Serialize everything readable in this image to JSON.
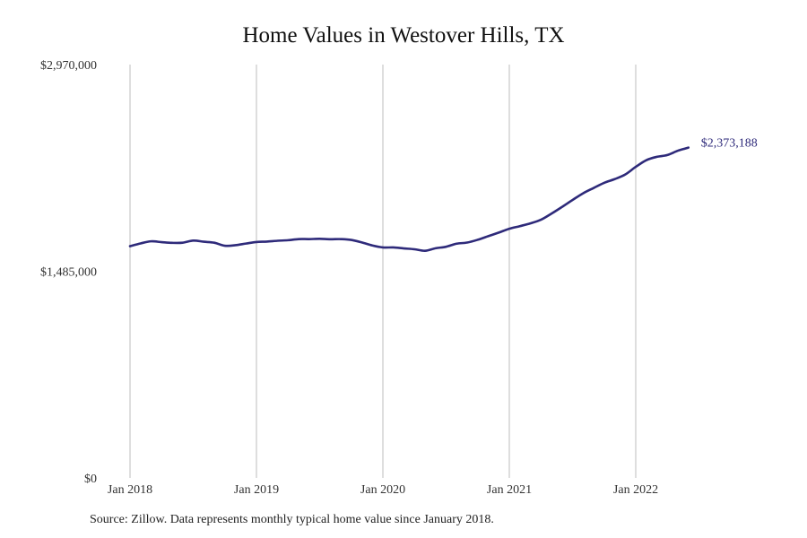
{
  "chart_data": {
    "type": "line",
    "title": "Home Values in Westover Hills, TX",
    "xlabel": "",
    "ylabel": "",
    "x_ticks": [
      "Jan 2018",
      "Jan 2019",
      "Jan 2020",
      "Jan 2021",
      "Jan 2022"
    ],
    "y_ticks": [
      {
        "value": 2970000,
        "label": "$2,970,000"
      },
      {
        "value": 1485000,
        "label": "$1,485,000"
      },
      {
        "value": 0,
        "label": "$0"
      }
    ],
    "ylim": [
      0,
      2970000
    ],
    "xlim": [
      "2018-01",
      "2022-09"
    ],
    "grid": {
      "vertical": true,
      "horizontal": false
    },
    "line_color": "#2e2a7a",
    "series": [
      {
        "name": "",
        "end_label": "$2,373,188",
        "x": [
          "2018-01",
          "2018-02",
          "2018-03",
          "2018-04",
          "2018-05",
          "2018-06",
          "2018-07",
          "2018-08",
          "2018-09",
          "2018-10",
          "2018-11",
          "2018-12",
          "2019-01",
          "2019-02",
          "2019-03",
          "2019-04",
          "2019-05",
          "2019-06",
          "2019-07",
          "2019-08",
          "2019-09",
          "2019-10",
          "2019-11",
          "2019-12",
          "2020-01",
          "2020-02",
          "2020-03",
          "2020-04",
          "2020-05",
          "2020-06",
          "2020-07",
          "2020-08",
          "2020-09",
          "2020-10",
          "2020-11",
          "2020-12",
          "2021-01",
          "2021-02",
          "2021-03",
          "2021-04",
          "2021-05",
          "2021-06",
          "2021-07",
          "2021-08",
          "2021-09",
          "2021-10",
          "2021-11",
          "2021-12",
          "2022-01",
          "2022-02",
          "2022-03",
          "2022-04",
          "2022-05",
          "2022-06"
        ],
        "values": [
          1665000,
          1685000,
          1700000,
          1694000,
          1689000,
          1690000,
          1705000,
          1697000,
          1690000,
          1668000,
          1672000,
          1684000,
          1695000,
          1698000,
          1704000,
          1708000,
          1716000,
          1716000,
          1718000,
          1715000,
          1716000,
          1710000,
          1692000,
          1670000,
          1656000,
          1656000,
          1649000,
          1643000,
          1632000,
          1650000,
          1661000,
          1683000,
          1691000,
          1711000,
          1737000,
          1763000,
          1790000,
          1809000,
          1829000,
          1855000,
          1899000,
          1947000,
          1997000,
          2045000,
          2083000,
          2120000,
          2147000,
          2180000,
          2235000,
          2283000,
          2307000,
          2320000,
          2351000,
          2373188
        ]
      }
    ],
    "source": "Source: Zillow. Data represents monthly typical home value since January 2018."
  }
}
